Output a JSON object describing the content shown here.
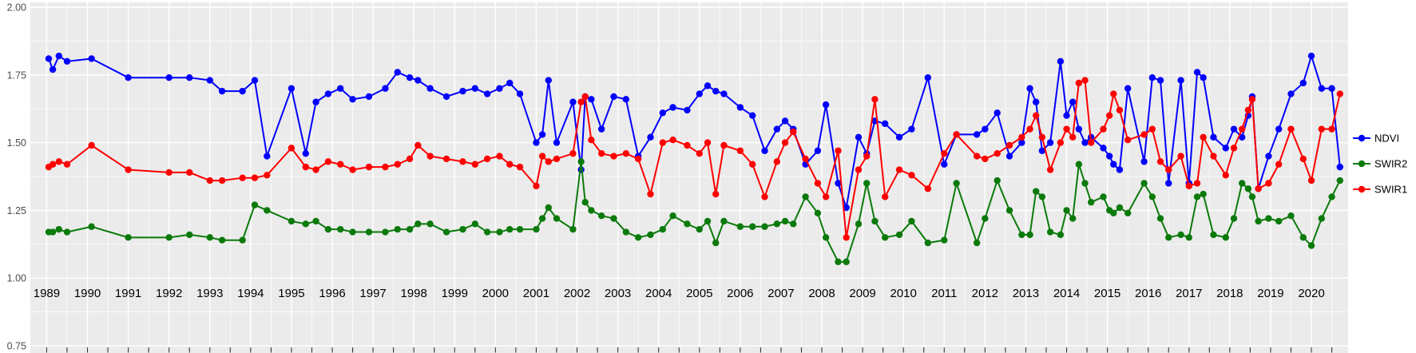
{
  "chart_data": {
    "type": "line",
    "title": "",
    "xlabel": "",
    "ylabel": "",
    "ylim": [
      0.75,
      2.0
    ],
    "xlim": [
      1988.6,
      2020.9
    ],
    "yticks": [
      0.75,
      1.0,
      1.25,
      1.5,
      1.75,
      2.0
    ],
    "ytick_labels": [
      "0.75",
      "1.00",
      "1.25",
      "1.50",
      "1.75",
      "2.00"
    ],
    "xticks": [
      1989,
      1990,
      1991,
      1992,
      1993,
      1994,
      1995,
      1996,
      1997,
      1998,
      1999,
      2000,
      2001,
      2002,
      2003,
      2004,
      2005,
      2006,
      2007,
      2008,
      2009,
      2010,
      2011,
      2012,
      2013,
      2014,
      2015,
      2016,
      2017,
      2018,
      2019,
      2020
    ],
    "grid": true,
    "panel_bg": "#EBEBEB",
    "grid_color": "#FFFFFF",
    "axis_text_color": "#4D4D4D",
    "year_label_color": "#000000",
    "legend_position": "right",
    "x": [
      1989.05,
      1989.15,
      1989.3,
      1989.5,
      1990.1,
      1991.0,
      1992.0,
      1992.5,
      1993.0,
      1993.3,
      1993.8,
      1994.1,
      1994.4,
      1995.0,
      1995.35,
      1995.6,
      1995.9,
      1996.2,
      1996.5,
      1996.9,
      1997.3,
      1997.6,
      1997.9,
      1998.1,
      1998.4,
      1998.8,
      1999.2,
      1999.5,
      1999.8,
      2000.1,
      2000.35,
      2000.6,
      2001.0,
      2001.15,
      2001.3,
      2001.5,
      2001.9,
      2002.1,
      2002.2,
      2002.35,
      2002.6,
      2002.9,
      2003.2,
      2003.5,
      2003.8,
      2004.1,
      2004.35,
      2004.7,
      2005.0,
      2005.2,
      2005.4,
      2005.6,
      2006.0,
      2006.3,
      2006.6,
      2006.9,
      2007.1,
      2007.3,
      2007.6,
      2007.9,
      2008.1,
      2008.4,
      2008.6,
      2008.9,
      2009.1,
      2009.3,
      2009.55,
      2009.9,
      2010.2,
      2010.6,
      2011.0,
      2011.3,
      2011.8,
      2012.0,
      2012.3,
      2012.6,
      2012.9,
      2013.1,
      2013.25,
      2013.4,
      2013.6,
      2013.85,
      2014.0,
      2014.15,
      2014.3,
      2014.45,
      2014.6,
      2014.9,
      2015.05,
      2015.15,
      2015.3,
      2015.5,
      2015.9,
      2016.1,
      2016.3,
      2016.5,
      2016.8,
      2017.0,
      2017.2,
      2017.35,
      2017.6,
      2017.9,
      2018.1,
      2018.3,
      2018.45,
      2018.55,
      2018.7,
      2018.95,
      2019.2,
      2019.5,
      2019.8,
      2020.0,
      2020.25,
      2020.5,
      2020.7
    ],
    "series": [
      {
        "name": "NDVI",
        "color": "#0000FF",
        "values": [
          1.81,
          1.77,
          1.82,
          1.8,
          1.81,
          1.74,
          1.74,
          1.74,
          1.73,
          1.69,
          1.69,
          1.73,
          1.45,
          1.7,
          1.46,
          1.65,
          1.68,
          1.7,
          1.66,
          1.67,
          1.7,
          1.76,
          1.74,
          1.73,
          1.7,
          1.67,
          1.69,
          1.7,
          1.68,
          1.7,
          1.72,
          1.68,
          1.5,
          1.53,
          1.73,
          1.5,
          1.65,
          1.4,
          1.67,
          1.66,
          1.55,
          1.67,
          1.66,
          1.45,
          1.52,
          1.61,
          1.63,
          1.62,
          1.68,
          1.71,
          1.69,
          1.68,
          1.63,
          1.6,
          1.47,
          1.55,
          1.58,
          1.55,
          1.42,
          1.47,
          1.64,
          1.35,
          1.26,
          1.52,
          1.46,
          1.58,
          1.57,
          1.52,
          1.55,
          1.74,
          1.42,
          1.53,
          1.53,
          1.55,
          1.61,
          1.45,
          1.5,
          1.7,
          1.65,
          1.47,
          1.5,
          1.8,
          1.6,
          1.65,
          1.55,
          1.5,
          1.52,
          1.48,
          1.45,
          1.42,
          1.4,
          1.7,
          1.43,
          1.74,
          1.73,
          1.35,
          1.73,
          1.35,
          1.76,
          1.74,
          1.52,
          1.48,
          1.55,
          1.52,
          1.6,
          1.67,
          1.33,
          1.45,
          1.55,
          1.68,
          1.72,
          1.82,
          1.7,
          1.7,
          1.41
        ]
      },
      {
        "name": "SWIR2",
        "color": "#0B7A0B",
        "values": [
          1.17,
          1.17,
          1.18,
          1.17,
          1.19,
          1.15,
          1.15,
          1.16,
          1.15,
          1.14,
          1.14,
          1.27,
          1.25,
          1.21,
          1.2,
          1.21,
          1.18,
          1.18,
          1.17,
          1.17,
          1.17,
          1.18,
          1.18,
          1.2,
          1.2,
          1.17,
          1.18,
          1.2,
          1.17,
          1.17,
          1.18,
          1.18,
          1.18,
          1.22,
          1.26,
          1.22,
          1.18,
          1.43,
          1.28,
          1.25,
          1.23,
          1.22,
          1.17,
          1.15,
          1.16,
          1.18,
          1.23,
          1.2,
          1.18,
          1.21,
          1.13,
          1.21,
          1.19,
          1.19,
          1.19,
          1.2,
          1.21,
          1.2,
          1.3,
          1.24,
          1.15,
          1.06,
          1.06,
          1.2,
          1.35,
          1.21,
          1.15,
          1.16,
          1.21,
          1.13,
          1.14,
          1.35,
          1.13,
          1.22,
          1.36,
          1.25,
          1.16,
          1.16,
          1.32,
          1.3,
          1.17,
          1.16,
          1.25,
          1.22,
          1.42,
          1.35,
          1.28,
          1.3,
          1.25,
          1.24,
          1.26,
          1.24,
          1.35,
          1.3,
          1.22,
          1.15,
          1.16,
          1.15,
          1.3,
          1.31,
          1.16,
          1.15,
          1.22,
          1.35,
          1.33,
          1.3,
          1.21,
          1.22,
          1.21,
          1.23,
          1.15,
          1.12,
          1.22,
          1.3,
          1.36
        ]
      },
      {
        "name": "SWIR1",
        "color": "#FF0000",
        "values": [
          1.41,
          1.42,
          1.43,
          1.42,
          1.49,
          1.4,
          1.39,
          1.39,
          1.36,
          1.36,
          1.37,
          1.37,
          1.38,
          1.48,
          1.41,
          1.4,
          1.43,
          1.42,
          1.4,
          1.41,
          1.41,
          1.42,
          1.44,
          1.49,
          1.45,
          1.44,
          1.43,
          1.42,
          1.44,
          1.45,
          1.42,
          1.41,
          1.34,
          1.45,
          1.43,
          1.44,
          1.46,
          1.65,
          1.67,
          1.51,
          1.46,
          1.45,
          1.46,
          1.44,
          1.31,
          1.5,
          1.51,
          1.49,
          1.46,
          1.5,
          1.31,
          1.49,
          1.47,
          1.42,
          1.3,
          1.43,
          1.5,
          1.54,
          1.44,
          1.35,
          1.3,
          1.47,
          1.15,
          1.4,
          1.45,
          1.66,
          1.3,
          1.4,
          1.38,
          1.33,
          1.46,
          1.53,
          1.45,
          1.44,
          1.46,
          1.49,
          1.52,
          1.55,
          1.6,
          1.52,
          1.4,
          1.5,
          1.55,
          1.52,
          1.72,
          1.73,
          1.5,
          1.55,
          1.6,
          1.68,
          1.62,
          1.51,
          1.53,
          1.55,
          1.43,
          1.4,
          1.45,
          1.34,
          1.35,
          1.52,
          1.45,
          1.38,
          1.48,
          1.55,
          1.62,
          1.66,
          1.33,
          1.35,
          1.42,
          1.55,
          1.44,
          1.36,
          1.55,
          1.55,
          1.68
        ]
      }
    ],
    "legend": {
      "items": [
        "NDVI",
        "SWIR2",
        "SWIR1"
      ],
      "text_color": "#000000"
    }
  }
}
